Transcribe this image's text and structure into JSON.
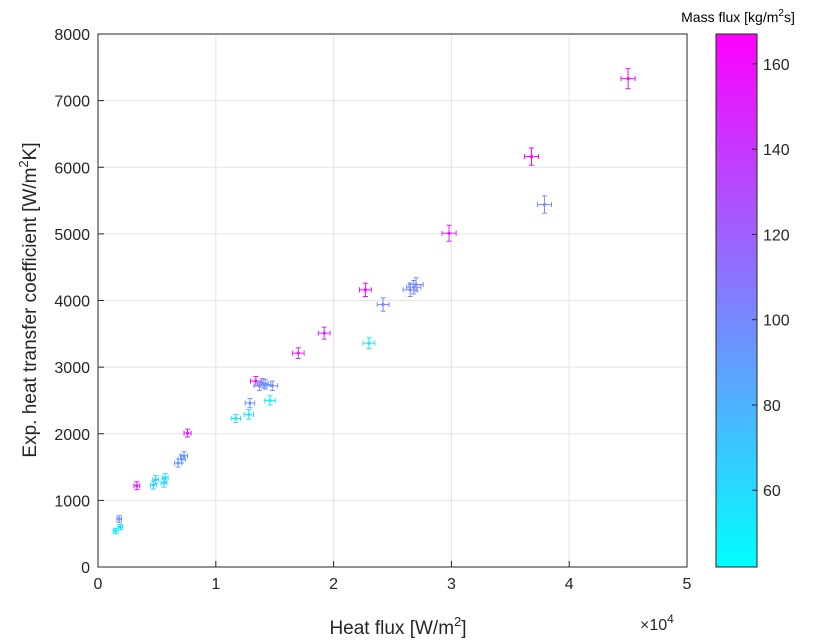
{
  "chart_data": {
    "type": "scatter",
    "xlabel": "Heat flux [W/m",
    "xlabel_sup": "2",
    "xlabel_end": "]",
    "x_exponent_base": "×10",
    "x_exponent_power": "4",
    "ylabel": "Exp. heat transfer coefficient [W/m",
    "ylabel_sup": "2",
    "ylabel_end": "K]",
    "xlim": [
      0,
      50000
    ],
    "ylim": [
      0,
      8000
    ],
    "x_tick_values": [
      0,
      10000,
      20000,
      30000,
      40000,
      50000
    ],
    "x_tick_labels": [
      "0",
      "1",
      "2",
      "3",
      "4",
      "5"
    ],
    "y_tick_values": [
      0,
      1000,
      2000,
      3000,
      4000,
      5000,
      6000,
      7000,
      8000
    ],
    "y_tick_labels": [
      "0",
      "1000",
      "2000",
      "3000",
      "4000",
      "5000",
      "6000",
      "7000",
      "8000"
    ],
    "grid": true,
    "error_bars": true,
    "colorbar": {
      "title": "Mass flux [kg/m",
      "title_sup": "2",
      "title_end": "s]",
      "range": [
        42,
        167
      ],
      "tick_values": [
        60,
        80,
        100,
        120,
        140,
        160
      ],
      "tick_labels": [
        "60",
        "80",
        "100",
        "120",
        "140",
        "160"
      ],
      "color_low": "#00ffff",
      "color_high": "#ff00ff"
    },
    "points": [
      {
        "x": 1500,
        "y": 540,
        "c": 50,
        "xerr": 200,
        "yerr": 40
      },
      {
        "x": 1900,
        "y": 600,
        "c": 58,
        "xerr": 200,
        "yerr": 40
      },
      {
        "x": 1800,
        "y": 720,
        "c": 95,
        "xerr": 200,
        "yerr": 50
      },
      {
        "x": 3300,
        "y": 1220,
        "c": 155,
        "xerr": 250,
        "yerr": 60
      },
      {
        "x": 4700,
        "y": 1230,
        "c": 65,
        "xerr": 250,
        "yerr": 60
      },
      {
        "x": 4900,
        "y": 1310,
        "c": 68,
        "xerr": 250,
        "yerr": 60
      },
      {
        "x": 5600,
        "y": 1260,
        "c": 62,
        "xerr": 250,
        "yerr": 60
      },
      {
        "x": 5700,
        "y": 1340,
        "c": 60,
        "xerr": 250,
        "yerr": 60
      },
      {
        "x": 6800,
        "y": 1560,
        "c": 92,
        "xerr": 300,
        "yerr": 60
      },
      {
        "x": 7100,
        "y": 1620,
        "c": 90,
        "xerr": 300,
        "yerr": 60
      },
      {
        "x": 7300,
        "y": 1670,
        "c": 95,
        "xerr": 300,
        "yerr": 60
      },
      {
        "x": 7600,
        "y": 2010,
        "c": 150,
        "xerr": 300,
        "yerr": 60
      },
      {
        "x": 11700,
        "y": 2230,
        "c": 52,
        "xerr": 400,
        "yerr": 60
      },
      {
        "x": 12800,
        "y": 2290,
        "c": 55,
        "xerr": 400,
        "yerr": 70
      },
      {
        "x": 12900,
        "y": 2460,
        "c": 98,
        "xerr": 400,
        "yerr": 70
      },
      {
        "x": 13400,
        "y": 2790,
        "c": 165,
        "xerr": 450,
        "yerr": 70
      },
      {
        "x": 13700,
        "y": 2720,
        "c": 100,
        "xerr": 450,
        "yerr": 70
      },
      {
        "x": 14000,
        "y": 2760,
        "c": 98,
        "xerr": 450,
        "yerr": 70
      },
      {
        "x": 14200,
        "y": 2740,
        "c": 96,
        "xerr": 450,
        "yerr": 70
      },
      {
        "x": 14800,
        "y": 2720,
        "c": 97,
        "xerr": 450,
        "yerr": 70
      },
      {
        "x": 14600,
        "y": 2500,
        "c": 50,
        "xerr": 450,
        "yerr": 70
      },
      {
        "x": 17000,
        "y": 3210,
        "c": 150,
        "xerr": 500,
        "yerr": 80
      },
      {
        "x": 19200,
        "y": 3510,
        "c": 148,
        "xerr": 500,
        "yerr": 90
      },
      {
        "x": 22700,
        "y": 4160,
        "c": 165,
        "xerr": 500,
        "yerr": 100
      },
      {
        "x": 23000,
        "y": 3360,
        "c": 52,
        "xerr": 500,
        "yerr": 80
      },
      {
        "x": 24200,
        "y": 3940,
        "c": 102,
        "xerr": 500,
        "yerr": 100
      },
      {
        "x": 26500,
        "y": 4160,
        "c": 98,
        "xerr": 600,
        "yerr": 100
      },
      {
        "x": 26800,
        "y": 4200,
        "c": 100,
        "xerr": 600,
        "yerr": 100
      },
      {
        "x": 27000,
        "y": 4240,
        "c": 99,
        "xerr": 600,
        "yerr": 100
      },
      {
        "x": 29800,
        "y": 5010,
        "c": 150,
        "xerr": 600,
        "yerr": 120
      },
      {
        "x": 36800,
        "y": 6160,
        "c": 165,
        "xerr": 600,
        "yerr": 130
      },
      {
        "x": 37900,
        "y": 5440,
        "c": 100,
        "xerr": 600,
        "yerr": 130
      },
      {
        "x": 45000,
        "y": 7330,
        "c": 160,
        "xerr": 600,
        "yerr": 150
      }
    ]
  }
}
